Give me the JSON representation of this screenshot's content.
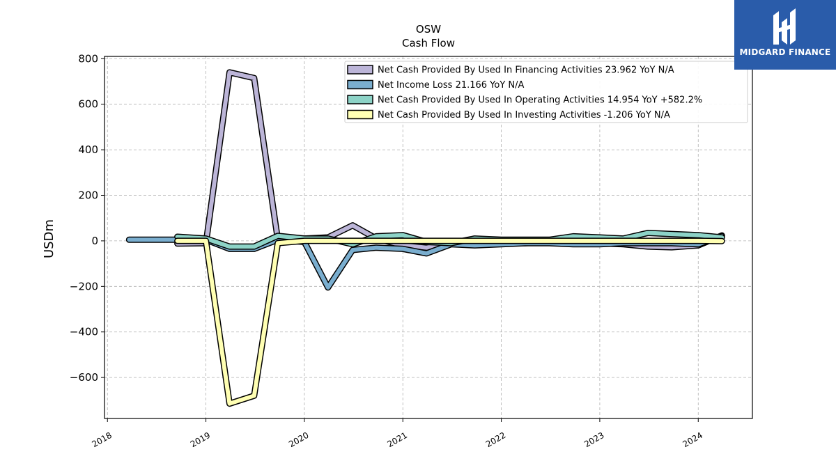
{
  "chart_data": {
    "type": "line",
    "title": "OSW",
    "subtitle": "Cash Flow",
    "ylabel": "USDm",
    "xlabel": "",
    "ylim": [
      -780,
      810
    ],
    "xlim": [
      2017.97,
      2024.55
    ],
    "x_ticks": [
      2018,
      2019,
      2020,
      2021,
      2022,
      2023,
      2024
    ],
    "x_tick_labels": [
      "2018",
      "2019",
      "2020",
      "2021",
      "2022",
      "2023",
      "2024"
    ],
    "y_ticks": [
      800,
      600,
      400,
      200,
      0,
      -200,
      -400,
      -600
    ],
    "y_tick_labels": [
      "800",
      "600",
      "400",
      "200",
      "0",
      "−200",
      "−400",
      "−600"
    ],
    "grid": true,
    "legend_position": "top-right",
    "series": [
      {
        "name": "Net Cash Provided By Used In Financing Activities  23.962 YoY N/A",
        "color": "#bcb5d8",
        "points": [
          [
            2018.71,
            -12
          ],
          [
            2019.0,
            -10
          ],
          [
            2019.24,
            740
          ],
          [
            2019.49,
            715
          ],
          [
            2019.73,
            5
          ],
          [
            2020.0,
            10
          ],
          [
            2020.24,
            15
          ],
          [
            2020.49,
            68
          ],
          [
            2020.73,
            10
          ],
          [
            2021.0,
            -20
          ],
          [
            2021.24,
            -30
          ],
          [
            2021.49,
            -10
          ],
          [
            2021.73,
            -5
          ],
          [
            2022.0,
            -5
          ],
          [
            2022.24,
            -10
          ],
          [
            2022.49,
            -5
          ],
          [
            2022.73,
            -10
          ],
          [
            2023.0,
            -10
          ],
          [
            2023.24,
            -15
          ],
          [
            2023.49,
            -25
          ],
          [
            2023.73,
            -28
          ],
          [
            2024.0,
            -20
          ],
          [
            2024.24,
            24
          ]
        ]
      },
      {
        "name": "Net Income Loss  21.166 YoY N/A",
        "color": "#7aaecf",
        "points": [
          [
            2018.22,
            5
          ],
          [
            2018.46,
            5
          ],
          [
            2018.71,
            5
          ],
          [
            2019.0,
            5
          ],
          [
            2019.24,
            -35
          ],
          [
            2019.49,
            -35
          ],
          [
            2019.73,
            5
          ],
          [
            2020.0,
            -5
          ],
          [
            2020.24,
            -205
          ],
          [
            2020.49,
            -40
          ],
          [
            2020.73,
            -30
          ],
          [
            2021.0,
            -35
          ],
          [
            2021.24,
            -55
          ],
          [
            2021.49,
            -15
          ],
          [
            2021.73,
            -20
          ],
          [
            2022.0,
            -15
          ],
          [
            2022.24,
            -10
          ],
          [
            2022.49,
            -10
          ],
          [
            2022.73,
            -15
          ],
          [
            2023.0,
            -15
          ],
          [
            2023.24,
            -10
          ],
          [
            2023.49,
            -10
          ],
          [
            2023.73,
            -10
          ],
          [
            2024.0,
            -15
          ],
          [
            2024.24,
            21
          ]
        ]
      },
      {
        "name": "Net Cash Provided By Used In Operating Activities  14.954 YoY +582.2%",
        "color": "#8dd3c7",
        "points": [
          [
            2018.71,
            18
          ],
          [
            2019.0,
            10
          ],
          [
            2019.24,
            -25
          ],
          [
            2019.49,
            -25
          ],
          [
            2019.73,
            22
          ],
          [
            2020.0,
            10
          ],
          [
            2020.24,
            10
          ],
          [
            2020.49,
            -15
          ],
          [
            2020.73,
            20
          ],
          [
            2021.0,
            25
          ],
          [
            2021.24,
            -5
          ],
          [
            2021.49,
            -10
          ],
          [
            2021.73,
            10
          ],
          [
            2022.0,
            5
          ],
          [
            2022.24,
            5
          ],
          [
            2022.49,
            5
          ],
          [
            2022.73,
            20
          ],
          [
            2023.0,
            15
          ],
          [
            2023.24,
            10
          ],
          [
            2023.49,
            35
          ],
          [
            2023.73,
            30
          ],
          [
            2024.0,
            25
          ],
          [
            2024.24,
            15
          ]
        ]
      },
      {
        "name": "Net Cash Provided By Used In Investing Activities  -1.206 YoY N/A",
        "color": "#ffffb3",
        "points": [
          [
            2018.71,
            0
          ],
          [
            2019.0,
            0
          ],
          [
            2019.24,
            -715
          ],
          [
            2019.49,
            -680
          ],
          [
            2019.73,
            -10
          ],
          [
            2020.0,
            0
          ],
          [
            2020.24,
            0
          ],
          [
            2020.49,
            0
          ],
          [
            2020.73,
            0
          ],
          [
            2021.0,
            0
          ],
          [
            2021.24,
            0
          ],
          [
            2021.49,
            0
          ],
          [
            2021.73,
            0
          ],
          [
            2022.0,
            0
          ],
          [
            2022.24,
            0
          ],
          [
            2022.49,
            0
          ],
          [
            2022.73,
            0
          ],
          [
            2023.0,
            0
          ],
          [
            2023.24,
            0
          ],
          [
            2023.49,
            0
          ],
          [
            2023.73,
            0
          ],
          [
            2024.0,
            0
          ],
          [
            2024.24,
            -1
          ]
        ]
      }
    ]
  },
  "logo": {
    "text": "MIDGARD FINANCE",
    "background": "#2a5caa"
  }
}
